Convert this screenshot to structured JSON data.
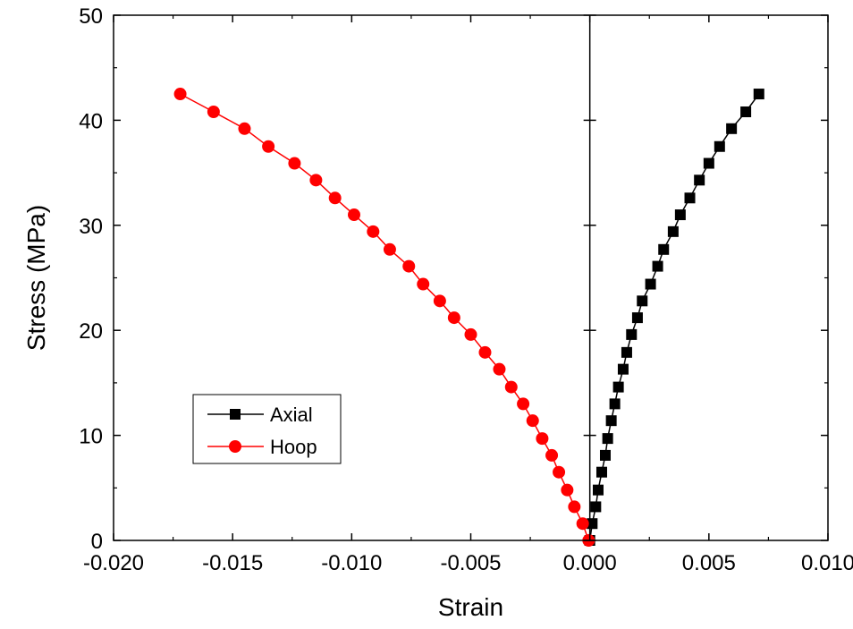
{
  "chart_data": {
    "type": "scatter",
    "xlabel": "Strain",
    "ylabel": "Stress (MPa)",
    "xlim": [
      -0.02,
      0.01
    ],
    "ylim": [
      0,
      50
    ],
    "x_ticks": [
      "-0.020",
      "-0.015",
      "-0.010",
      "-0.005",
      "0.000",
      "0.005",
      "0.010"
    ],
    "y_ticks": [
      "0",
      "10",
      "20",
      "30",
      "40",
      "50"
    ],
    "legend_position": "lower-left",
    "series": [
      {
        "name": "Axial",
        "color": "#000000",
        "marker": "square",
        "points": [
          [
            0.0,
            0.0
          ],
          [
            0.0001,
            1.6
          ],
          [
            0.00025,
            3.2
          ],
          [
            0.00035,
            4.8
          ],
          [
            0.0005,
            6.5
          ],
          [
            0.00065,
            8.1
          ],
          [
            0.00075,
            9.7
          ],
          [
            0.0009,
            11.4
          ],
          [
            0.00105,
            13.0
          ],
          [
            0.0012,
            14.6
          ],
          [
            0.0014,
            16.3
          ],
          [
            0.00155,
            17.9
          ],
          [
            0.00175,
            19.6
          ],
          [
            0.002,
            21.2
          ],
          [
            0.0022,
            22.8
          ],
          [
            0.00255,
            24.4
          ],
          [
            0.00285,
            26.1
          ],
          [
            0.0031,
            27.7
          ],
          [
            0.0035,
            29.4
          ],
          [
            0.0038,
            31.0
          ],
          [
            0.0042,
            32.6
          ],
          [
            0.0046,
            34.3
          ],
          [
            0.005,
            35.9
          ],
          [
            0.00545,
            37.5
          ],
          [
            0.00595,
            39.2
          ],
          [
            0.00655,
            40.8
          ],
          [
            0.0071,
            42.5
          ]
        ]
      },
      {
        "name": "Hoop",
        "color": "#ff0000",
        "marker": "circle",
        "points": [
          [
            -5e-05,
            0.0
          ],
          [
            -0.0003,
            1.6
          ],
          [
            -0.00065,
            3.2
          ],
          [
            -0.00095,
            4.8
          ],
          [
            -0.0013,
            6.5
          ],
          [
            -0.0016,
            8.1
          ],
          [
            -0.002,
            9.7
          ],
          [
            -0.0024,
            11.4
          ],
          [
            -0.0028,
            13.0
          ],
          [
            -0.0033,
            14.6
          ],
          [
            -0.0038,
            16.3
          ],
          [
            -0.0044,
            17.9
          ],
          [
            -0.005,
            19.6
          ],
          [
            -0.0057,
            21.2
          ],
          [
            -0.0063,
            22.8
          ],
          [
            -0.007,
            24.4
          ],
          [
            -0.0076,
            26.1
          ],
          [
            -0.0084,
            27.7
          ],
          [
            -0.0091,
            29.4
          ],
          [
            -0.0099,
            31.0
          ],
          [
            -0.0107,
            32.6
          ],
          [
            -0.0115,
            34.3
          ],
          [
            -0.0124,
            35.9
          ],
          [
            -0.0135,
            37.5
          ],
          [
            -0.0145,
            39.2
          ],
          [
            -0.0158,
            40.8
          ],
          [
            -0.0172,
            42.5
          ]
        ]
      }
    ]
  }
}
